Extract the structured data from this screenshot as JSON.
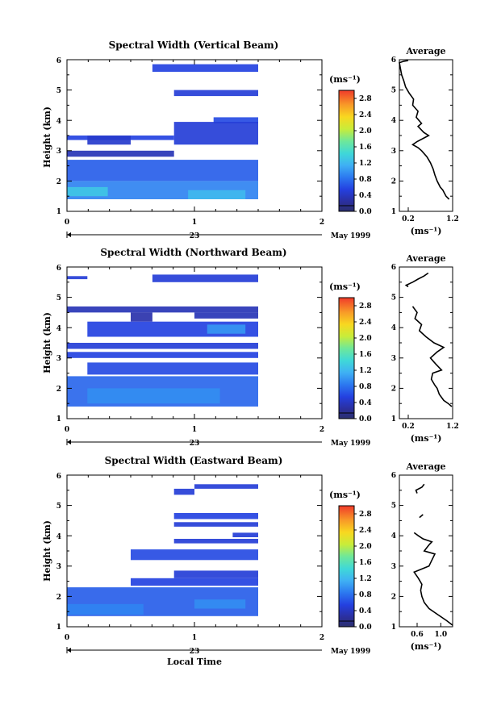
{
  "chart_data": [
    {
      "type": "heatmap",
      "title": "Spectral Width (Vertical Beam)",
      "xlabel": "",
      "ylabel": "Height (km)",
      "xticks": [
        "0",
        "1",
        "2"
      ],
      "yticks": [
        "1",
        "2",
        "3",
        "4",
        "5",
        "6"
      ],
      "xlim": [
        0,
        2
      ],
      "ylim": [
        1,
        6
      ],
      "date_labels": {
        "day": "23",
        "month_year": "May 1999"
      },
      "colorbar": {
        "unit": "(ms⁻¹)",
        "ticks": [
          "0.0",
          "0.4",
          "0.8",
          "1.2",
          "1.6",
          "2.0",
          "2.4",
          "2.8"
        ],
        "range": [
          0,
          3.0
        ]
      },
      "bands": [
        {
          "t0": 0.67,
          "t1": 1.5,
          "h0": 5.6,
          "h1": 5.85,
          "value": 0.55
        },
        {
          "t0": 0.84,
          "t1": 1.5,
          "h0": 4.8,
          "h1": 5.0,
          "value": 0.5
        },
        {
          "t0": 1.15,
          "t1": 1.5,
          "h0": 3.9,
          "h1": 4.1,
          "value": 0.6
        },
        {
          "t0": 0.84,
          "t1": 1.5,
          "h0": 3.2,
          "h1": 3.95,
          "value": 0.5
        },
        {
          "t0": 0.0,
          "t1": 0.84,
          "h0": 3.35,
          "h1": 3.5,
          "value": 0.55
        },
        {
          "t0": 0.16,
          "t1": 0.5,
          "h0": 3.2,
          "h1": 3.5,
          "value": 0.45
        },
        {
          "t0": 0.0,
          "t1": 0.84,
          "h0": 2.8,
          "h1": 3.0,
          "value": 0.35
        },
        {
          "t0": 0.0,
          "t1": 1.5,
          "h0": 2.0,
          "h1": 2.7,
          "value": 0.7
        },
        {
          "t0": 0.0,
          "t1": 1.5,
          "h0": 1.4,
          "h1": 2.0,
          "value": 0.9
        },
        {
          "t0": 0.0,
          "t1": 0.32,
          "h0": 1.5,
          "h1": 1.8,
          "value": 1.3
        },
        {
          "t0": 0.95,
          "t1": 1.4,
          "h0": 1.4,
          "h1": 1.7,
          "value": 1.2
        }
      ],
      "average": {
        "xlim": [
          0.0,
          1.2
        ],
        "xticks": [
          "0.2",
          "1.2"
        ],
        "title": "Average",
        "xlabel": "(ms⁻¹)",
        "segments": [
          [
            [
              1.12,
              1.4
            ],
            [
              1.05,
              1.5
            ],
            [
              0.98,
              1.7
            ],
            [
              0.92,
              1.8
            ],
            [
              0.85,
              2.0
            ],
            [
              0.8,
              2.2
            ],
            [
              0.76,
              2.4
            ],
            [
              0.7,
              2.6
            ],
            [
              0.62,
              2.8
            ],
            [
              0.5,
              3.0
            ],
            [
              0.42,
              3.1
            ],
            [
              0.3,
              3.2
            ],
            [
              0.4,
              3.3
            ],
            [
              0.66,
              3.5
            ],
            [
              0.55,
              3.6
            ],
            [
              0.42,
              3.8
            ],
            [
              0.5,
              3.9
            ],
            [
              0.38,
              4.1
            ],
            [
              0.42,
              4.3
            ],
            [
              0.3,
              4.5
            ],
            [
              0.32,
              4.7
            ],
            [
              0.22,
              4.9
            ],
            [
              0.14,
              5.1
            ],
            [
              0.1,
              5.3
            ],
            [
              0.05,
              5.5
            ],
            [
              0.0,
              5.9
            ],
            [
              0.1,
              5.95
            ],
            [
              0.2,
              5.97
            ]
          ]
        ]
      }
    },
    {
      "type": "heatmap",
      "title": "Spectral Width (Northward Beam)",
      "xlabel": "",
      "ylabel": "Height (km)",
      "xticks": [
        "0",
        "1",
        "2"
      ],
      "yticks": [
        "1",
        "2",
        "3",
        "4",
        "5",
        "6"
      ],
      "xlim": [
        0,
        2
      ],
      "ylim": [
        1,
        6
      ],
      "date_labels": {
        "day": "23",
        "month_year": "May 1999"
      },
      "colorbar": {
        "unit": "(ms⁻¹)",
        "ticks": [
          "0.0",
          "0.4",
          "0.8",
          "1.2",
          "1.6",
          "2.0",
          "2.4",
          "2.8"
        ],
        "range": [
          0,
          3.0
        ]
      },
      "bands": [
        {
          "t0": 0.0,
          "t1": 0.16,
          "h0": 5.6,
          "h1": 5.7,
          "value": 0.5
        },
        {
          "t0": 0.67,
          "t1": 1.5,
          "h0": 5.5,
          "h1": 5.75,
          "value": 0.5
        },
        {
          "t0": 0.0,
          "t1": 1.5,
          "h0": 4.5,
          "h1": 4.7,
          "value": 0.35
        },
        {
          "t0": 0.5,
          "t1": 0.67,
          "h0": 4.2,
          "h1": 4.5,
          "value": 0.3
        },
        {
          "t0": 1.0,
          "t1": 1.5,
          "h0": 4.3,
          "h1": 4.5,
          "value": 0.35
        },
        {
          "t0": 0.16,
          "t1": 1.5,
          "h0": 3.7,
          "h1": 4.2,
          "value": 0.55
        },
        {
          "t0": 1.1,
          "t1": 1.4,
          "h0": 3.8,
          "h1": 4.1,
          "value": 1.0
        },
        {
          "t0": 0.0,
          "t1": 1.5,
          "h0": 3.3,
          "h1": 3.5,
          "value": 0.5
        },
        {
          "t0": 0.0,
          "t1": 1.5,
          "h0": 3.0,
          "h1": 3.2,
          "value": 0.55
        },
        {
          "t0": 0.16,
          "t1": 1.5,
          "h0": 2.45,
          "h1": 2.85,
          "value": 0.6
        },
        {
          "t0": 0.0,
          "t1": 1.5,
          "h0": 1.4,
          "h1": 2.4,
          "value": 0.75
        },
        {
          "t0": 0.16,
          "t1": 1.2,
          "h0": 1.5,
          "h1": 2.0,
          "value": 0.95
        }
      ],
      "average": {
        "xlim": [
          0.0,
          1.2
        ],
        "xticks": [
          "0.2",
          "1.2"
        ],
        "title": "Average",
        "xlabel": "(ms⁻¹)",
        "segments": [
          [
            [
              0.2,
              5.35
            ],
            [
              0.15,
              5.4
            ],
            [
              0.3,
              5.5
            ],
            [
              0.42,
              5.6
            ],
            [
              0.55,
              5.7
            ],
            [
              0.65,
              5.8
            ]
          ],
          [
            [
              1.18,
              1.4
            ],
            [
              1.1,
              1.5
            ],
            [
              1.0,
              1.6
            ],
            [
              0.9,
              1.8
            ],
            [
              0.85,
              2.0
            ],
            [
              0.8,
              2.1
            ],
            [
              0.72,
              2.3
            ],
            [
              0.75,
              2.5
            ],
            [
              0.95,
              2.6
            ],
            [
              0.82,
              2.8
            ],
            [
              0.7,
              3.0
            ],
            [
              0.85,
              3.2
            ],
            [
              1.0,
              3.35
            ],
            [
              0.78,
              3.5
            ],
            [
              0.6,
              3.7
            ],
            [
              0.45,
              3.9
            ],
            [
              0.5,
              4.1
            ],
            [
              0.35,
              4.3
            ],
            [
              0.4,
              4.5
            ],
            [
              0.3,
              4.7
            ]
          ]
        ]
      }
    },
    {
      "type": "heatmap",
      "title": "Spectral Width (Eastward Beam)",
      "xlabel": "Local Time",
      "ylabel": "Height (km)",
      "xticks": [
        "0",
        "1",
        "2"
      ],
      "yticks": [
        "1",
        "2",
        "3",
        "4",
        "5",
        "6"
      ],
      "xlim": [
        0,
        2
      ],
      "ylim": [
        1,
        6
      ],
      "date_labels": {
        "day": "23",
        "month_year": "May 1999"
      },
      "colorbar": {
        "unit": "(ms⁻¹)",
        "ticks": [
          "0.0",
          "0.4",
          "0.8",
          "1.2",
          "1.6",
          "2.0",
          "2.4",
          "2.8"
        ],
        "range": [
          0,
          3.0
        ]
      },
      "bands": [
        {
          "t0": 1.0,
          "t1": 1.5,
          "h0": 5.55,
          "h1": 5.7,
          "value": 0.5
        },
        {
          "t0": 0.84,
          "t1": 1.0,
          "h0": 5.35,
          "h1": 5.55,
          "value": 0.5
        },
        {
          "t0": 0.84,
          "t1": 1.5,
          "h0": 4.55,
          "h1": 4.75,
          "value": 0.55
        },
        {
          "t0": 0.84,
          "t1": 1.5,
          "h0": 4.3,
          "h1": 4.45,
          "value": 0.5
        },
        {
          "t0": 1.3,
          "t1": 1.5,
          "h0": 3.95,
          "h1": 4.1,
          "value": 0.5
        },
        {
          "t0": 0.84,
          "t1": 1.5,
          "h0": 3.75,
          "h1": 3.9,
          "value": 0.5
        },
        {
          "t0": 0.5,
          "t1": 1.5,
          "h0": 3.2,
          "h1": 3.55,
          "value": 0.6
        },
        {
          "t0": 0.84,
          "t1": 1.5,
          "h0": 2.6,
          "h1": 2.85,
          "value": 0.5
        },
        {
          "t0": 0.5,
          "t1": 1.5,
          "h0": 2.35,
          "h1": 2.6,
          "value": 0.55
        },
        {
          "t0": 0.0,
          "t1": 1.5,
          "h0": 1.35,
          "h1": 2.3,
          "value": 0.7
        },
        {
          "t0": 0.0,
          "t1": 0.6,
          "h0": 1.4,
          "h1": 1.75,
          "value": 0.9
        },
        {
          "t0": 1.0,
          "t1": 1.4,
          "h0": 1.6,
          "h1": 1.9,
          "value": 0.95
        }
      ],
      "average": {
        "xlim": [
          0.3,
          1.2
        ],
        "xticks": [
          "0.6",
          "1.0"
        ],
        "title": "Average",
        "xlabel": "(ms⁻¹)",
        "segments": [
          [
            [
              0.6,
              5.4
            ],
            [
              0.58,
              5.5
            ],
            [
              0.68,
              5.6
            ],
            [
              0.72,
              5.7
            ]
          ],
          [
            [
              0.64,
              4.6
            ],
            [
              0.7,
              4.7
            ]
          ],
          [
            [
              1.2,
              1.05
            ],
            [
              1.1,
              1.2
            ],
            [
              0.95,
              1.4
            ],
            [
              0.8,
              1.6
            ],
            [
              0.72,
              1.8
            ],
            [
              0.68,
              2.0
            ],
            [
              0.66,
              2.2
            ],
            [
              0.68,
              2.4
            ],
            [
              0.62,
              2.6
            ],
            [
              0.55,
              2.8
            ],
            [
              0.8,
              3.0
            ],
            [
              0.85,
              3.2
            ],
            [
              0.9,
              3.4
            ],
            [
              0.72,
              3.5
            ],
            [
              0.8,
              3.7
            ],
            [
              0.85,
              3.8
            ],
            [
              0.7,
              3.9
            ],
            [
              0.62,
              4.0
            ],
            [
              0.55,
              4.1
            ]
          ]
        ]
      }
    }
  ]
}
